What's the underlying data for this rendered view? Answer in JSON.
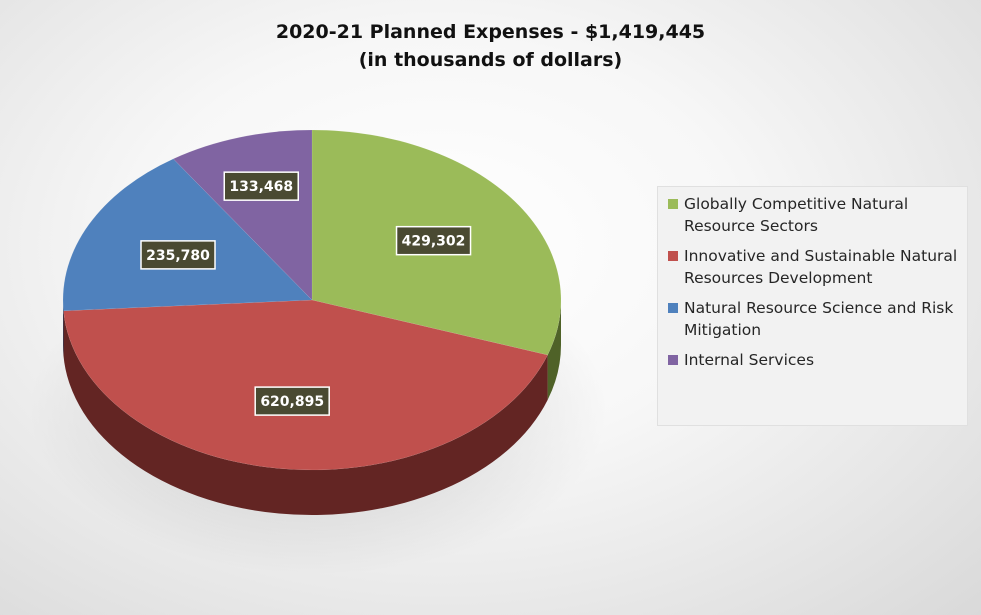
{
  "chart_data": {
    "type": "pie",
    "title": "2020-21 Planned Expenses - $1,419,445",
    "subtitle": "(in thousands of dollars)",
    "categories": [
      "Globally Competitive Natural Resource Sectors",
      "Innovative and Sustainable Natural Resources Development",
      "Natural Resource Science and Risk Mitigation",
      "Internal Services"
    ],
    "values": [
      429302,
      620895,
      235780,
      133468
    ],
    "data_labels": [
      "429,302",
      "620,895",
      "235,780",
      "133,468"
    ],
    "colors": [
      "#9BBB59",
      "#C0504D",
      "#4F81BD",
      "#8064A2"
    ],
    "side_colors": [
      "#4F6228",
      "#632523",
      "#254061",
      "#3F3151"
    ],
    "label_box_color": "#4A4A32",
    "legend_position": "right"
  }
}
